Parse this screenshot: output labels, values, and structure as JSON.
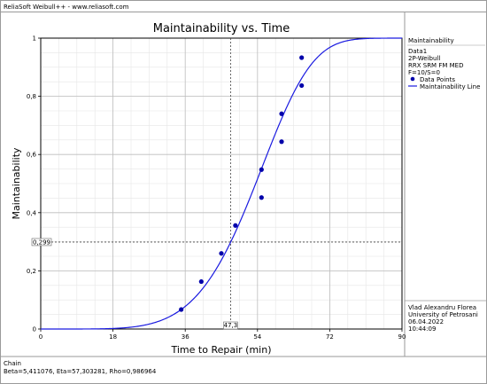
{
  "window": {
    "header_text": "ReliaSoft Weibull++ - www.reliasoft.com"
  },
  "chart_data": {
    "type": "scatter",
    "title": "Maintainability vs. Time",
    "xlabel": "Time to Repair (min)",
    "ylabel": "Maintainability",
    "xlim": [
      0,
      90
    ],
    "ylim": [
      0,
      1
    ],
    "x_ticks": [
      0,
      18,
      36,
      54,
      72,
      90
    ],
    "y_ticks": [
      0,
      0.2,
      0.4,
      0.6,
      0.8,
      1
    ],
    "x_tick_labels": [
      "0",
      "18",
      "36",
      "54",
      "72",
      "90"
    ],
    "y_tick_labels": [
      "0",
      "0,2",
      "0,4",
      "0,6",
      "0,8",
      "1"
    ],
    "grid": true,
    "series": [
      {
        "name": "Data Points",
        "kind": "scatter",
        "color": "#0000aa",
        "x": [
          35,
          40,
          45,
          48.5,
          55,
          55,
          60,
          60,
          65,
          65
        ],
        "y": [
          0.067,
          0.163,
          0.26,
          0.356,
          0.452,
          0.548,
          0.644,
          0.74,
          0.837,
          0.933
        ]
      },
      {
        "name": "Maintainability Line",
        "kind": "weibull-2p-cdf",
        "color": "#1a1ae0",
        "beta": 5.411076,
        "eta": 57.303281
      }
    ],
    "crosshair": {
      "x": 47.3,
      "y": 0.299,
      "x_label": "47,3",
      "y_label": "0,299"
    },
    "legend": {
      "placement": "right",
      "title": "Maintainability",
      "lines": [
        "Data1",
        "2P-Weibull",
        "RRX SRM FM MED",
        "F=10/S=0"
      ],
      "entries": [
        "Data Points",
        "Maintainability Line"
      ]
    }
  },
  "author_block": {
    "lines": [
      "Vlad Alexandru Florea",
      "University of Petrosani",
      "06.04.2022",
      "10:44:09"
    ]
  },
  "footer": {
    "lines": [
      "Chain",
      "Beta=5,411076, Eta=57,303281, Rho=0,986964"
    ]
  }
}
